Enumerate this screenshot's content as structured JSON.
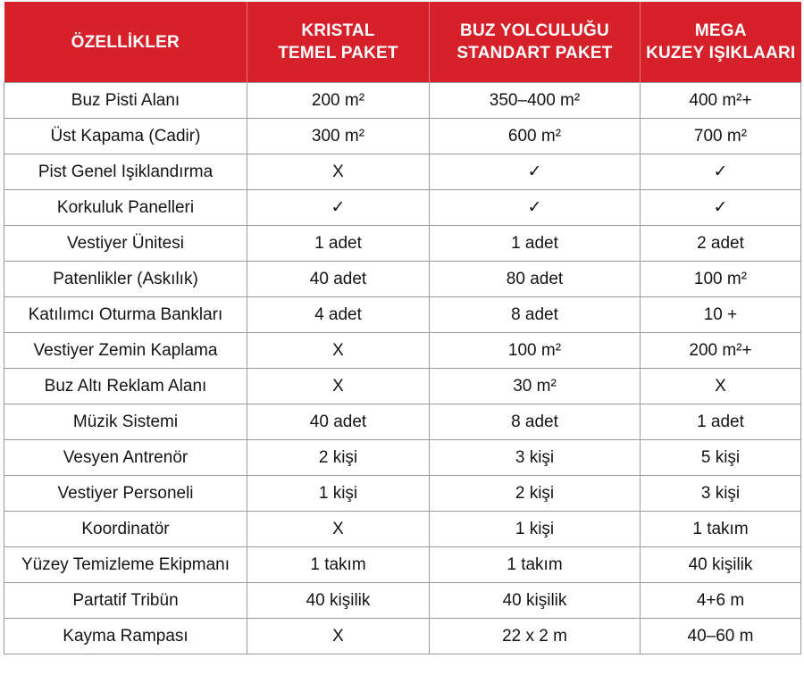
{
  "table": {
    "headers": [
      [
        "ÖZELLİKLER"
      ],
      [
        "KRISTAL",
        "TEMEL PAKET"
      ],
      [
        "BUZ YOLCULUĞU",
        "STANDART PAKET"
      ],
      [
        "MEGA",
        "KUZEY IŞIKLAARI"
      ]
    ],
    "rows": [
      [
        "Buz Pisti Alanı",
        "200 m²",
        "350–400 m²",
        "400 m²+"
      ],
      [
        "Üst Kapama (Cadir)",
        "300 m²",
        "600 m²",
        "700 m²"
      ],
      [
        "Pist Genel Işiklandırma",
        "X",
        "✓",
        "✓"
      ],
      [
        "Korkuluk Panelleri",
        "✓",
        "✓",
        "✓"
      ],
      [
        "Vestiyer Ünitesi",
        "1 adet",
        "1 adet",
        "2 adet"
      ],
      [
        "Patenlikler (Askılık)",
        "40 adet",
        "80 adet",
        "100 m²"
      ],
      [
        "Katılımcı Oturma Bankları",
        "4 adet",
        "8 adet",
        "10 +"
      ],
      [
        "Vestiyer Zemin Kaplama",
        "X",
        "100 m²",
        "200 m²+"
      ],
      [
        "Buz Altı Reklam Alanı",
        "X",
        "30 m²",
        "X"
      ],
      [
        "Müzik Sistemi",
        "40 adet",
        "8 adet",
        "1 adet"
      ],
      [
        "Vesyen Antrenör",
        "2 kişi",
        "3 kişi",
        "5 kişi"
      ],
      [
        "Vestiyer Personeli",
        "1 kişi",
        "2 kişi",
        "3 kişi"
      ],
      [
        "Koordinatör",
        "X",
        "1 kişi",
        "1 takım"
      ],
      [
        "Yüzey Temizleme Ekipmanı",
        "1 takım",
        "1 takım",
        "40 kişilik"
      ],
      [
        "Partatif Tribün",
        "40 kişilik",
        "40 kişilik",
        "4+6 m"
      ],
      [
        "Kayma Rampası",
        "X",
        "22 x 2 m",
        "40–60 m"
      ]
    ]
  },
  "colors": {
    "header_bg": "#d6202a",
    "header_text": "#ffffff",
    "grid": "#9a9a9a",
    "body_text": "#141414"
  }
}
